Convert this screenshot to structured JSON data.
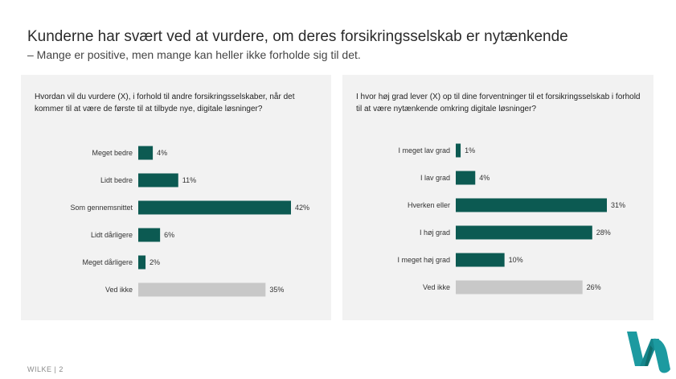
{
  "header": {
    "title": "Kunderne har svært ved at vurdere, om deres forsikringsselskab er nytænkende",
    "subtitle": "– Mange er positive, men mange kan heller ikke forholde sig til det."
  },
  "colors": {
    "primary_bar": "#0c5a52",
    "dontknow_bar": "#c8c8c8",
    "logo": "#1c9aa0"
  },
  "footer": {
    "text": "WILKE | 2"
  },
  "logo": {
    "name": "wilke-logo-icon"
  },
  "chart_data": [
    {
      "type": "bar",
      "orientation": "horizontal",
      "question": "Hvordan vil du vurdere (X), i forhold til andre forsikringsselskaber, når det kommer til at være de første til at tilbyde nye, digitale løsninger?",
      "categories": [
        "Meget bedre",
        "Lidt bedre",
        "Som gennemsnittet",
        "Lidt dårligere",
        "Meget dårligere",
        "Ved ikke"
      ],
      "values": [
        4,
        11,
        42,
        6,
        2,
        35
      ],
      "value_labels": [
        "4%",
        "11%",
        "42%",
        "6%",
        "2%",
        "35%"
      ],
      "unit": "%",
      "xlim": [
        0,
        42
      ],
      "grid": false,
      "legend": "none"
    },
    {
      "type": "bar",
      "orientation": "horizontal",
      "question": "I hvor høj grad lever (X) op til dine forventninger til et forsikringsselskab i forhold til at være nytænkende omkring digitale løsninger?",
      "categories": [
        "I meget lav grad",
        "I lav grad",
        "Hverken eller",
        "I høj grad",
        "I meget høj grad",
        "Ved ikke"
      ],
      "values": [
        1,
        4,
        31,
        28,
        10,
        26
      ],
      "value_labels": [
        "1%",
        "4%",
        "31%",
        "28%",
        "10%",
        "26%"
      ],
      "unit": "%",
      "xlim": [
        0,
        31
      ],
      "grid": false,
      "legend": "none"
    }
  ]
}
